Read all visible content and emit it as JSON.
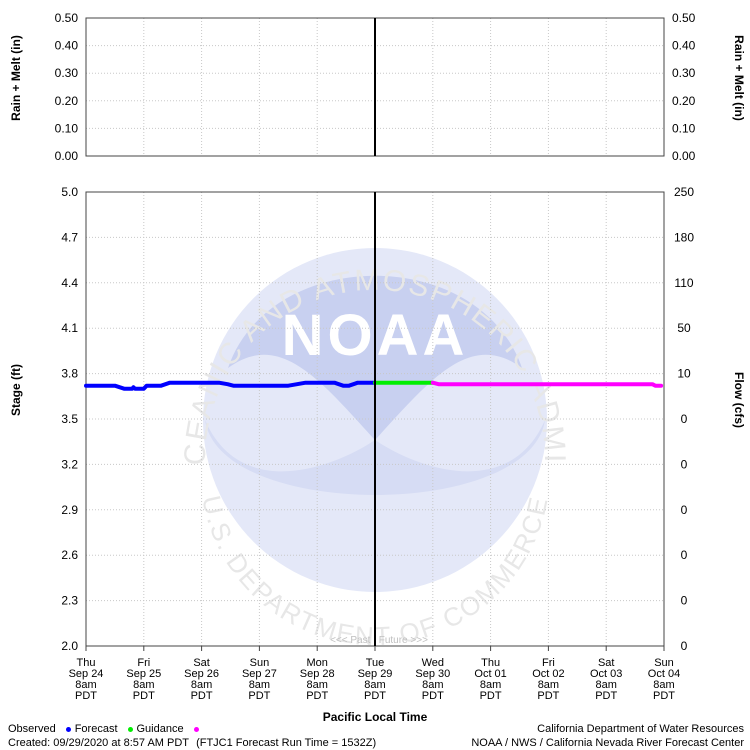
{
  "chart_data": {
    "type": "line",
    "precip_panel": {
      "ylabel_left": "Rain + Melt (in)",
      "ylabel_right": "Rain + Melt (in)",
      "yticks": [
        "0.50",
        "0.40",
        "0.30",
        "0.20",
        "0.10",
        "0.00"
      ],
      "ylim": [
        0,
        0.5
      ]
    },
    "stage_panel": {
      "ylabel_left": "Stage (ft)",
      "ylabel_right": "Flow (cfs)",
      "ylim": [
        2.0,
        5.0
      ],
      "yticks_left": [
        "5.0",
        "4.7",
        "4.4",
        "4.1",
        "3.8",
        "3.5",
        "3.2",
        "2.9",
        "2.6",
        "2.3",
        "2.0"
      ],
      "yticks_right": [
        "250",
        "180",
        "110",
        "50",
        "10",
        "0",
        "0",
        "0",
        "0",
        "0",
        "0"
      ]
    },
    "xlabel": "Pacific Local Time",
    "x_ticks": [
      [
        "Thu",
        "Sep 24",
        "8am",
        "PDT"
      ],
      [
        "Fri",
        "Sep 25",
        "8am",
        "PDT"
      ],
      [
        "Sat",
        "Sep 26",
        "8am",
        "PDT"
      ],
      [
        "Sun",
        "Sep 27",
        "8am",
        "PDT"
      ],
      [
        "Mon",
        "Sep 28",
        "8am",
        "PDT"
      ],
      [
        "Tue",
        "Sep 29",
        "8am",
        "PDT"
      ],
      [
        "Wed",
        "Sep 30",
        "8am",
        "PDT"
      ],
      [
        "Thu",
        "Oct 01",
        "8am",
        "PDT"
      ],
      [
        "Fri",
        "Oct 02",
        "8am",
        "PDT"
      ],
      [
        "Sat",
        "Oct 03",
        "8am",
        "PDT"
      ],
      [
        "Sun",
        "Oct 04",
        "8am",
        "PDT"
      ]
    ],
    "x_unit": "days after Thu Sep 24 8am PDT",
    "now_x": 5,
    "past_future_label": "<<< Past   Future >>>",
    "series": [
      {
        "name": "Observed",
        "color": "#0000ff",
        "points": [
          [
            0,
            3.72
          ],
          [
            0.5,
            3.72
          ],
          [
            0.66,
            3.7
          ],
          [
            0.8,
            3.7
          ],
          [
            0.82,
            3.71
          ],
          [
            0.85,
            3.7
          ],
          [
            1.0,
            3.7
          ],
          [
            1.05,
            3.72
          ],
          [
            1.3,
            3.72
          ],
          [
            1.45,
            3.74
          ],
          [
            1.6,
            3.74
          ],
          [
            2.0,
            3.74
          ],
          [
            2.3,
            3.74
          ],
          [
            2.45,
            3.73
          ],
          [
            2.55,
            3.72
          ],
          [
            3.0,
            3.72
          ],
          [
            3.5,
            3.72
          ],
          [
            3.65,
            3.73
          ],
          [
            3.8,
            3.74
          ],
          [
            4.3,
            3.74
          ],
          [
            4.45,
            3.72
          ],
          [
            4.55,
            3.72
          ],
          [
            4.7,
            3.74
          ],
          [
            5.0,
            3.74
          ]
        ]
      },
      {
        "name": "Forecast",
        "color": "#00ee00",
        "points": [
          [
            5.0,
            3.74
          ],
          [
            6.0,
            3.74
          ]
        ]
      },
      {
        "name": "Guidance",
        "color": "#ff00ff",
        "points": [
          [
            6.0,
            3.74
          ],
          [
            6.1,
            3.73
          ],
          [
            7.0,
            3.73
          ],
          [
            8.0,
            3.73
          ],
          [
            9.0,
            3.73
          ],
          [
            9.8,
            3.73
          ],
          [
            9.85,
            3.72
          ],
          [
            9.95,
            3.72
          ]
        ]
      }
    ]
  },
  "watermark": {
    "logo_text": "NOAA",
    "ring_text": "NATIONAL OCEANIC AND ATMOSPHERIC ADMINISTRATION",
    "bottom_text": "U.S. DEPARTMENT OF COMMERCE"
  },
  "legend": {
    "observed": "Observed",
    "forecast": "Forecast",
    "guidance": "Guidance",
    "observed_color": "#0000ff",
    "forecast_color": "#00ee00",
    "guidance_color": "#ff00ff"
  },
  "footer": {
    "created": "Created: 09/29/2020 at 8:57 AM PDT",
    "run": "(FTJC1 Forecast Run Time = 1532Z)",
    "agency1": "California Department of Water Resources",
    "agency2": "NOAA / NWS / California Nevada River Forecast Center"
  }
}
